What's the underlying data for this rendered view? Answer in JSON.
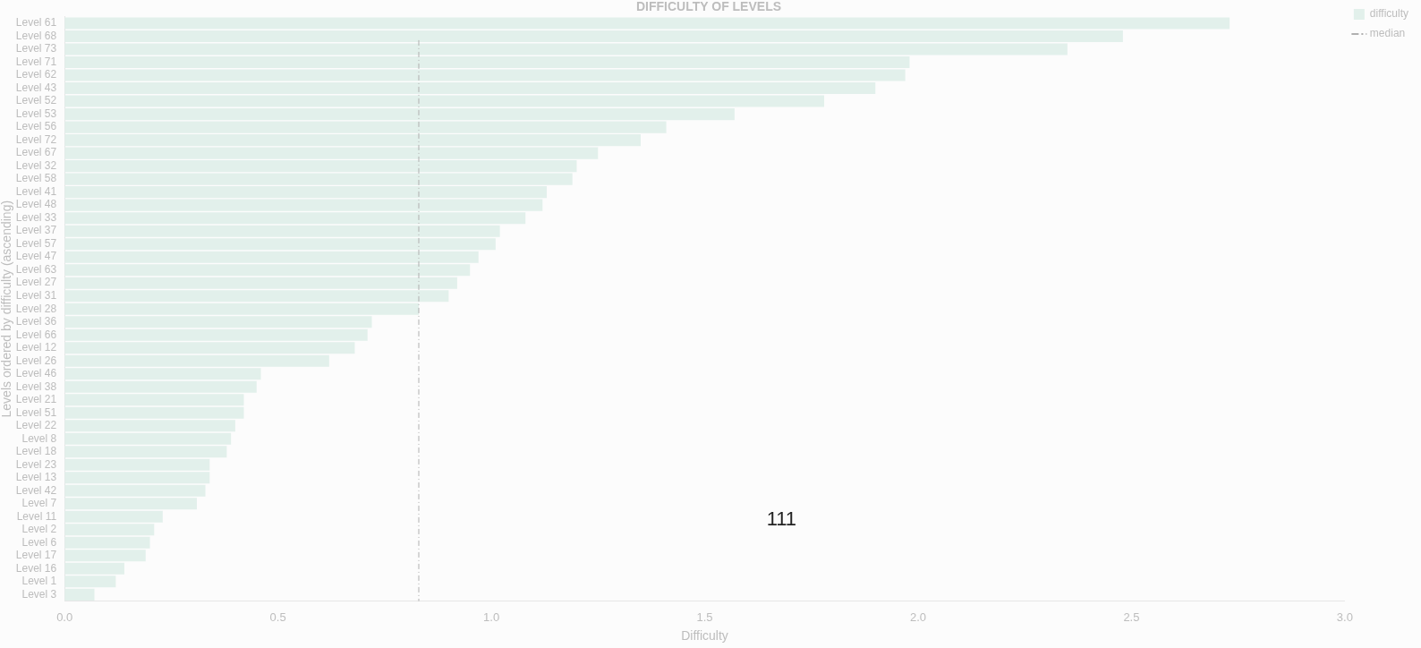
{
  "chart_data": {
    "type": "bar",
    "orientation": "horizontal",
    "title": "DIFFICULTY OF LEVELS",
    "xlabel": "Difficulty",
    "ylabel": "Levels ordered by difficulty (ascending)",
    "categories": [
      "Level 61",
      "Level 68",
      "Level 73",
      "Level 71",
      "Level 62",
      "Level 43",
      "Level 52",
      "Level 53",
      "Level 56",
      "Level 72",
      "Level 67",
      "Level 32",
      "Level 58",
      "Level 41",
      "Level 48",
      "Level 33",
      "Level 37",
      "Level 57",
      "Level 47",
      "Level 63",
      "Level 27",
      "Level 31",
      "Level 28",
      "Level 36",
      "Level 66",
      "Level 12",
      "Level 26",
      "Level 46",
      "Level 38",
      "Level 21",
      "Level 51",
      "Level 22",
      "Level 8",
      "Level 18",
      "Level 23",
      "Level 13",
      "Level 42",
      "Level 7",
      "Level 11",
      "Level 2",
      "Level 6",
      "Level 17",
      "Level 16",
      "Level 1",
      "Level 3"
    ],
    "series": [
      {
        "name": "difficulty",
        "color": "#e2f0eb",
        "values": [
          2.73,
          2.48,
          2.35,
          1.98,
          1.97,
          1.9,
          1.78,
          1.57,
          1.41,
          1.35,
          1.25,
          1.2,
          1.19,
          1.13,
          1.12,
          1.08,
          1.02,
          1.01,
          0.97,
          0.95,
          0.92,
          0.9,
          0.83,
          0.72,
          0.71,
          0.68,
          0.62,
          0.46,
          0.45,
          0.42,
          0.42,
          0.4,
          0.39,
          0.38,
          0.34,
          0.34,
          0.33,
          0.31,
          0.23,
          0.21,
          0.2,
          0.19,
          0.14,
          0.12,
          0.07
        ]
      }
    ],
    "xlim": [
      0,
      3
    ],
    "xticks": [
      {
        "value": 0,
        "label": "0.0"
      },
      {
        "value": 0.5,
        "label": "0.5"
      },
      {
        "value": 1,
        "label": "1.0"
      },
      {
        "value": 1.5,
        "label": "1.5"
      },
      {
        "value": 2,
        "label": "2.0"
      },
      {
        "value": 2.5,
        "label": "2.5"
      },
      {
        "value": 3,
        "label": "3.0"
      }
    ],
    "ref_lines": [
      {
        "axis": "x",
        "value": 0.83,
        "label": "median",
        "color": "#b0b0b0",
        "line_style": "dashdot"
      }
    ],
    "annotations": [
      "111"
    ],
    "legend": "top right",
    "grid": false
  }
}
